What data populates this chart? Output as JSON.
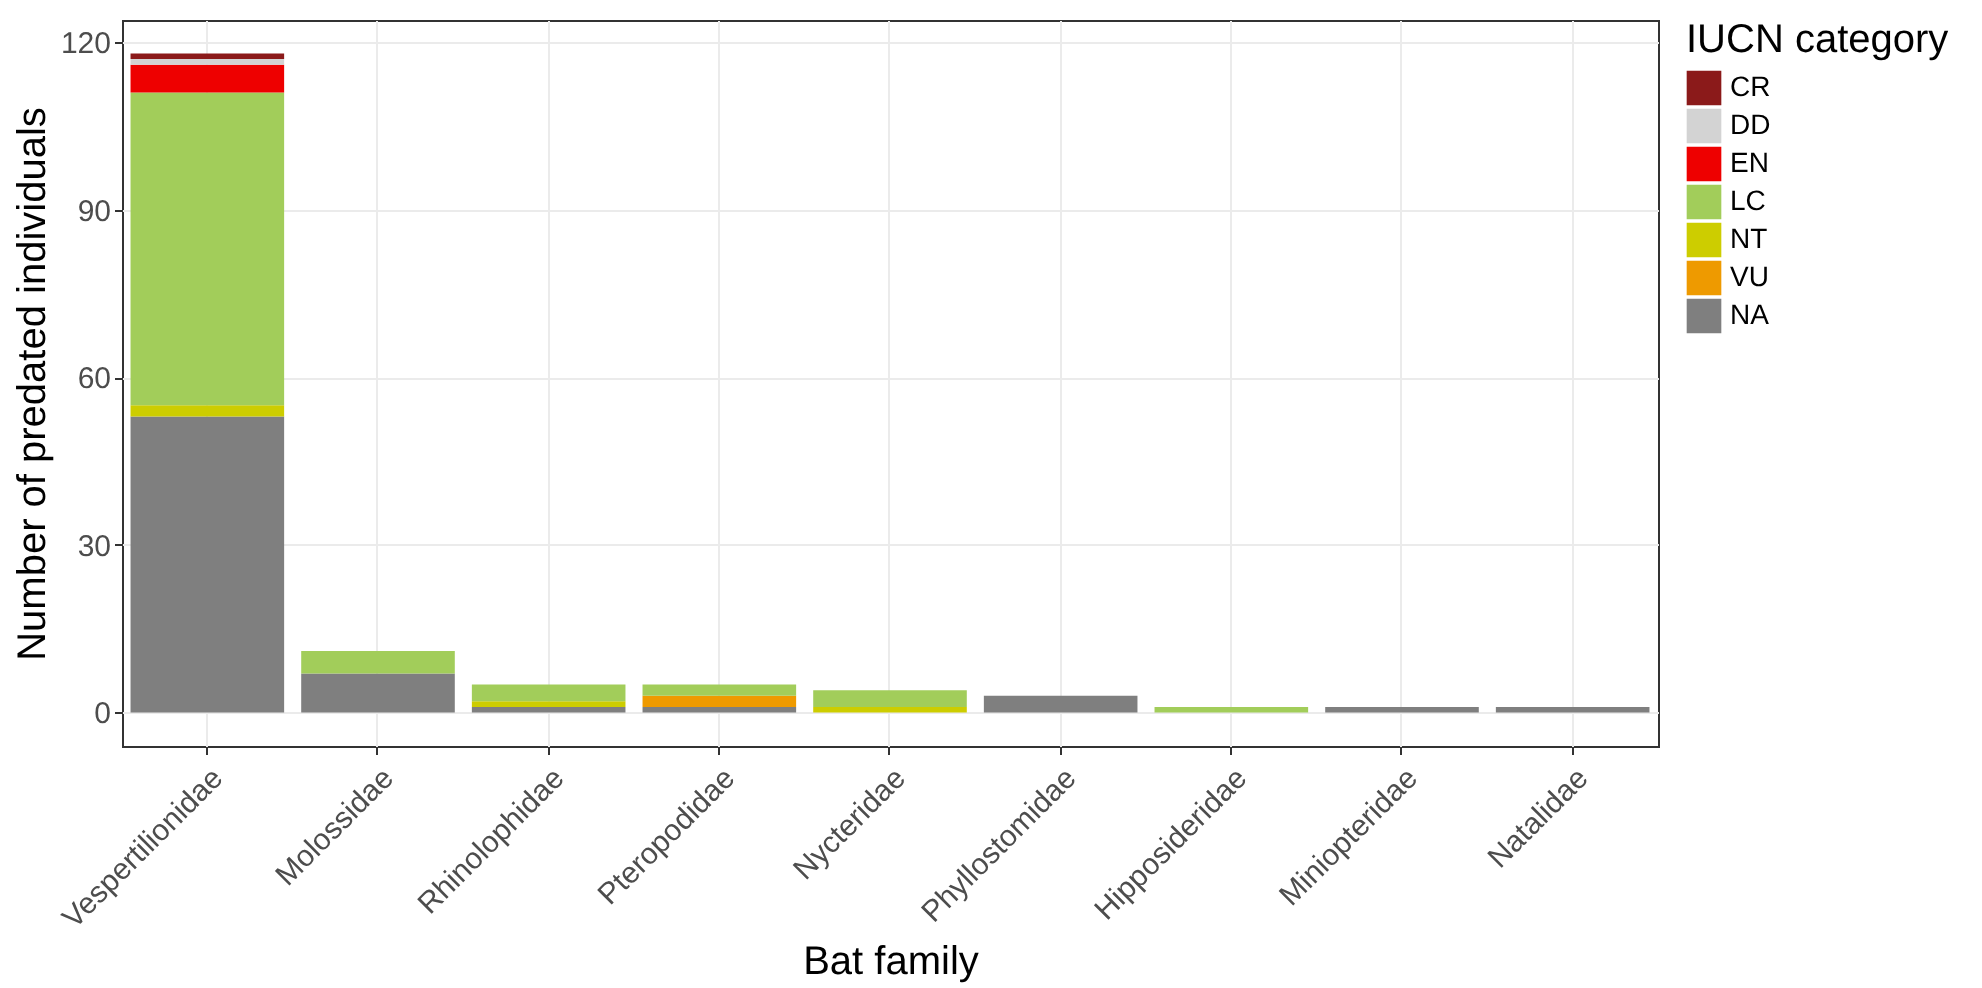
{
  "chart_data": {
    "type": "bar",
    "stacked": true,
    "xlabel": "Bat family",
    "ylabel": "Number of predated individuals",
    "legend_title": "IUCN category",
    "legend": "right",
    "grid": true,
    "categories": [
      "Vespertilionidae",
      "Molossidae",
      "Rhinolophidae",
      "Pteropodidae",
      "Nycteridae",
      "Phyllostomidae",
      "Hipposideridae",
      "Miniopteridae",
      "Natalidae"
    ],
    "ylim": [
      -6,
      124
    ],
    "yticks": [
      0,
      30,
      60,
      90,
      120
    ],
    "series": [
      {
        "name": "NA",
        "color": "#7f7f7f",
        "values": [
          53,
          7,
          1,
          1,
          null,
          3,
          null,
          1,
          1
        ]
      },
      {
        "name": "VU",
        "color": "#ee9a00",
        "values": [
          null,
          null,
          null,
          2,
          null,
          null,
          null,
          null,
          null
        ]
      },
      {
        "name": "NT",
        "color": "#cdcd00",
        "values": [
          2,
          null,
          1,
          null,
          1,
          null,
          null,
          null,
          null
        ]
      },
      {
        "name": "LC",
        "color": "#a2cd5a",
        "values": [
          56,
          4,
          3,
          2,
          3,
          null,
          1,
          null,
          null
        ]
      },
      {
        "name": "EN",
        "color": "#ee0000",
        "values": [
          5,
          null,
          null,
          null,
          null,
          null,
          null,
          null,
          null
        ]
      },
      {
        "name": "DD",
        "color": "#d3d3d3",
        "values": [
          1,
          null,
          null,
          null,
          null,
          null,
          null,
          null,
          null
        ]
      },
      {
        "name": "CR",
        "color": "#8b1a1a",
        "values": [
          1,
          null,
          null,
          null,
          null,
          null,
          null,
          null,
          null
        ]
      }
    ]
  }
}
